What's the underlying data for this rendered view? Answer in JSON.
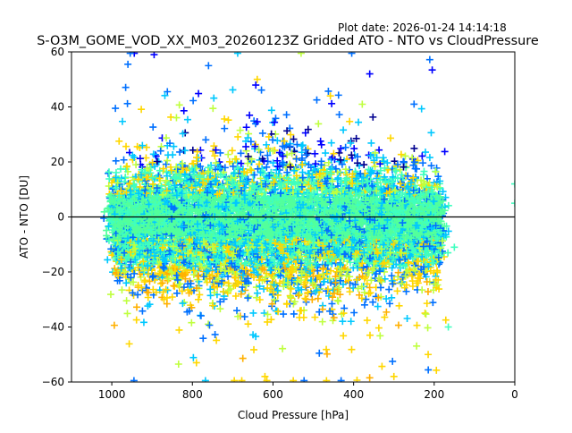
{
  "plot_date": "Plot date: 2026-01-24 14:14:18",
  "chart_data": {
    "type": "scatter",
    "title": "S-O3M_GOME_VOD_XX_M03_20260123Z Gridded ATO - NTO vs CloudPressure",
    "xlabel": "Cloud Pressure [hPa]",
    "ylabel": "ATO - NTO [DU]",
    "xlim": [
      1100,
      0
    ],
    "ylim": [
      -60,
      60
    ],
    "xticks": [
      1000,
      800,
      600,
      400,
      200,
      0
    ],
    "yticks": [
      -60,
      -40,
      -20,
      0,
      20,
      40,
      60
    ],
    "xtick_labels": [
      "1000",
      "800",
      "600",
      "400",
      "200",
      "0"
    ],
    "ytick_labels": [
      "−60",
      "−40",
      "−20",
      "0",
      "20",
      "40",
      "60"
    ],
    "reference_line": 0,
    "marker": "+",
    "colormap": "jet",
    "colors": [
      "#00008f",
      "#0000ff",
      "#0070ff",
      "#00c8ff",
      "#3fffbf",
      "#52ff9c",
      "#bfff3f",
      "#ffd700",
      "#ffb000"
    ],
    "cluster": {
      "x_range": [
        1000,
        180
      ],
      "core_y_range": [
        -30,
        32
      ],
      "point_count_estimate": 8000
    },
    "notable_points": [
      {
        "x": 960,
        "y": 55.5
      },
      {
        "x": 895,
        "y": 59
      },
      {
        "x": 760,
        "y": 55
      },
      {
        "x": 360,
        "y": 52
      },
      {
        "x": 250,
        "y": 41
      },
      {
        "x": 0,
        "y": 12
      },
      {
        "x": 0,
        "y": 5
      },
      {
        "x": 150,
        "y": -11
      },
      {
        "x": 165,
        "y": -40
      },
      {
        "x": 215,
        "y": -50
      },
      {
        "x": 300,
        "y": -58
      },
      {
        "x": 620,
        "y": -58
      },
      {
        "x": 790,
        "y": -53
      }
    ]
  }
}
